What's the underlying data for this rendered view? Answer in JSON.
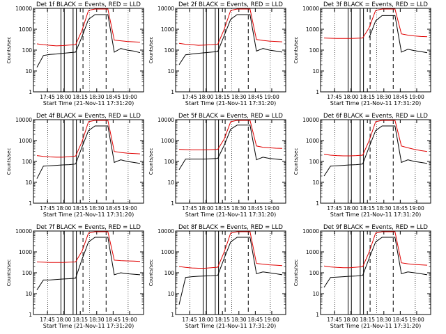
{
  "chart_data": [
    {
      "type": "line",
      "title": "Det 1f BLACK = Events, RED = LLD",
      "xlabel": "Start Time (21-Nov-11 17:31:20)",
      "ylabel": "Counts/sec",
      "x_ticks": [
        "17:45",
        "18:00",
        "18:15",
        "18:30",
        "18:45",
        "19:00"
      ],
      "y_ticks": [
        "1",
        "10",
        "100",
        "1000",
        "10000"
      ],
      "ylim": [
        1,
        10000
      ],
      "y_scale": "log",
      "series": [
        {
          "color": "#000000",
          "values": [
            15,
            55,
            62,
            65,
            70,
            75,
            80,
            450,
            3000,
            5000,
            5000,
            5000,
            80,
            120,
            100,
            90,
            75
          ]
        },
        {
          "color": "#e00000",
          "values": [
            200,
            180,
            170,
            160,
            165,
            175,
            180,
            900,
            8000,
            10000,
            10000,
            10000,
            300,
            280,
            260,
            250,
            240
          ]
        }
      ]
    },
    {
      "type": "line",
      "title": "Det 2f BLACK = Events, RED = LLD",
      "xlabel": "Start Time (21-Nov-11 17:31:20)",
      "ylabel": "Counts/sec",
      "x_ticks": [
        "17:45",
        "18:00",
        "18:15",
        "18:30",
        "18:45",
        "19:00"
      ],
      "y_ticks": [
        "1",
        "10",
        "100",
        "1000",
        "10000"
      ],
      "ylim": [
        1,
        10000
      ],
      "y_scale": "log",
      "series": [
        {
          "color": "#000000",
          "values": [
            20,
            60,
            65,
            70,
            75,
            80,
            85,
            500,
            3000,
            5000,
            5000,
            5000,
            90,
            120,
            100,
            90,
            80
          ]
        },
        {
          "color": "#e00000",
          "values": [
            210,
            190,
            180,
            170,
            175,
            180,
            190,
            1000,
            8000,
            10000,
            10000,
            10000,
            320,
            290,
            270,
            260,
            250
          ]
        }
      ]
    },
    {
      "type": "line",
      "title": "Det 3f BLACK = Events, RED = LLD",
      "xlabel": "Start Time (21-Nov-11 17:31:20)",
      "ylabel": "Counts/sec",
      "x_ticks": [
        "17:45",
        "18:00",
        "18:15",
        "18:30",
        "18:45",
        "19:00"
      ],
      "y_ticks": [
        "1",
        "10",
        "100",
        "1000",
        "10000"
      ],
      "ylim": [
        1,
        10000
      ],
      "y_scale": "log",
      "series": [
        {
          "color": "#000000",
          "values": [
            null,
            null,
            null,
            null,
            null,
            null,
            null,
            400,
            2500,
            4500,
            4500,
            4500,
            80,
            110,
            95,
            85,
            75
          ]
        },
        {
          "color": "#e00000",
          "values": [
            380,
            370,
            360,
            360,
            360,
            370,
            380,
            1200,
            8000,
            10000,
            10000,
            10000,
            600,
            520,
            480,
            450,
            440
          ]
        }
      ]
    },
    {
      "type": "line",
      "title": "Det 4f BLACK = Events, RED = LLD",
      "xlabel": "Start Time (21-Nov-11 17:31:20)",
      "ylabel": "Counts/sec",
      "x_ticks": [
        "17:45",
        "18:00",
        "18:15",
        "18:30",
        "18:45",
        "19:00"
      ],
      "y_ticks": [
        "1",
        "10",
        "100",
        "1000",
        "10000"
      ],
      "ylim": [
        1,
        10000
      ],
      "y_scale": "log",
      "series": [
        {
          "color": "#000000",
          "values": [
            15,
            60,
            62,
            65,
            68,
            70,
            75,
            500,
            3000,
            5000,
            5000,
            5000,
            90,
            120,
            100,
            90,
            80
          ]
        },
        {
          "color": "#e00000",
          "values": [
            190,
            175,
            165,
            160,
            160,
            170,
            180,
            900,
            8000,
            10000,
            10000,
            10000,
            300,
            270,
            250,
            240,
            230
          ]
        }
      ]
    },
    {
      "type": "line",
      "title": "Det 5f BLACK = Events, RED = LLD",
      "xlabel": "Start Time (21-Nov-11 17:31:20)",
      "ylabel": "Counts/sec",
      "x_ticks": [
        "17:45",
        "18:00",
        "18:15",
        "18:30",
        "18:45",
        "19:00"
      ],
      "y_ticks": [
        "1",
        "10",
        "100",
        "1000",
        "10000"
      ],
      "ylim": [
        1,
        10000
      ],
      "y_scale": "log",
      "series": [
        {
          "color": "#000000",
          "values": [
            40,
            130,
            130,
            130,
            130,
            135,
            140,
            600,
            3500,
            5500,
            5500,
            5500,
            120,
            160,
            140,
            130,
            120
          ]
        },
        {
          "color": "#e00000",
          "values": [
            380,
            370,
            360,
            360,
            360,
            370,
            380,
            1200,
            8000,
            10000,
            10000,
            10000,
            550,
            480,
            450,
            430,
            420
          ]
        }
      ]
    },
    {
      "type": "line",
      "title": "Det 6f BLACK = Events, RED = LLD",
      "xlabel": "Start Time (21-Nov-11 17:31:20)",
      "ylabel": "Counts/sec",
      "x_ticks": [
        "17:45",
        "18:00",
        "18:15",
        "18:30",
        "18:45",
        "19:00"
      ],
      "y_ticks": [
        "1",
        "10",
        "100",
        "1000",
        "10000"
      ],
      "ylim": [
        1,
        10000
      ],
      "y_scale": "log",
      "series": [
        {
          "color": "#000000",
          "values": [
            20,
            60,
            62,
            65,
            68,
            70,
            75,
            500,
            3000,
            5000,
            5000,
            5000,
            90,
            120,
            100,
            90,
            80
          ]
        },
        {
          "color": "#e00000",
          "values": [
            220,
            200,
            190,
            185,
            185,
            190,
            200,
            1000,
            8000,
            10000,
            10000,
            10000,
            550,
            450,
            380,
            330,
            300
          ]
        }
      ]
    },
    {
      "type": "line",
      "title": "Det 7f BLACK = Events, RED = LLD",
      "xlabel": "Start Time (21-Nov-11 17:31:20)",
      "ylabel": "Counts/sec",
      "x_ticks": [
        "17:45",
        "18:00",
        "18:15",
        "18:30",
        "18:45",
        "19:00"
      ],
      "y_ticks": [
        "1",
        "10",
        "100",
        "1000",
        "10000"
      ],
      "ylim": [
        1,
        10000
      ],
      "y_scale": "log",
      "series": [
        {
          "color": "#000000",
          "values": [
            15,
            45,
            45,
            48,
            50,
            52,
            55,
            450,
            3000,
            5000,
            5000,
            5000,
            80,
            100,
            90,
            85,
            80
          ]
        },
        {
          "color": "#e00000",
          "values": [
            330,
            320,
            310,
            310,
            310,
            320,
            330,
            1100,
            8000,
            10000,
            10000,
            10000,
            400,
            380,
            370,
            360,
            350
          ]
        }
      ]
    },
    {
      "type": "line",
      "title": "Det 8f BLACK = Events, RED = LLD",
      "xlabel": "Start Time (21-Nov-11 17:31:20)",
      "ylabel": "Counts/sec",
      "x_ticks": [
        "17:45",
        "18:00",
        "18:15",
        "18:30",
        "18:45",
        "19:00"
      ],
      "y_ticks": [
        "1",
        "10",
        "100",
        "1000",
        "10000"
      ],
      "ylim": [
        1,
        10000
      ],
      "y_scale": "log",
      "series": [
        {
          "color": "#000000",
          "values": [
            3,
            60,
            65,
            68,
            70,
            72,
            75,
            500,
            3000,
            5000,
            5000,
            5000,
            90,
            110,
            100,
            90,
            80
          ]
        },
        {
          "color": "#e00000",
          "values": [
            200,
            180,
            170,
            165,
            165,
            175,
            185,
            1000,
            8000,
            10000,
            10000,
            10000,
            280,
            260,
            240,
            230,
            220
          ]
        }
      ]
    },
    {
      "type": "line",
      "title": "Det 9f BLACK = Events, RED = LLD",
      "xlabel": "Start Time (21-Nov-11 17:31:20)",
      "ylabel": "Counts/sec",
      "x_ticks": [
        "17:45",
        "18:00",
        "18:15",
        "18:30",
        "18:45",
        "19:00"
      ],
      "y_ticks": [
        "1",
        "10",
        "100",
        "1000",
        "10000"
      ],
      "ylim": [
        1,
        10000
      ],
      "y_scale": "log",
      "series": [
        {
          "color": "#000000",
          "values": [
            20,
            60,
            62,
            65,
            68,
            70,
            75,
            500,
            3000,
            5000,
            5000,
            5000,
            90,
            110,
            100,
            90,
            80
          ]
        },
        {
          "color": "#e00000",
          "values": [
            210,
            190,
            180,
            175,
            175,
            185,
            195,
            1000,
            8000,
            10000,
            10000,
            10000,
            300,
            270,
            250,
            240,
            230
          ]
        }
      ]
    }
  ]
}
